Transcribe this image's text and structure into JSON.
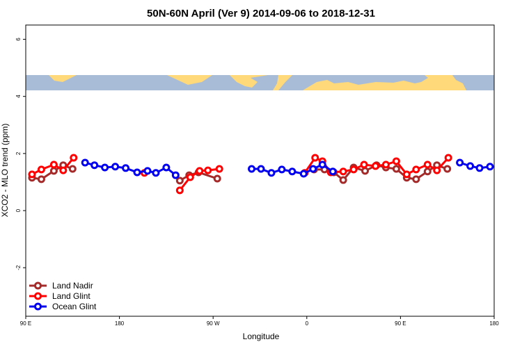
{
  "chart_data": {
    "type": "line",
    "title": "50N-60N April (Ver 9)   2014-09-06 to 2018-12-31",
    "x_label": "Longitude",
    "y_label": "XCO2 - MLO trend (ppm)",
    "xlim": [
      90,
      540
    ],
    "ylim": [
      -3.7,
      6.5
    ],
    "xticks": [
      {
        "value": 90,
        "label": "90 E"
      },
      180,
      {
        "value": 270,
        "label": "90 W"
      },
      {
        "value": 360,
        "label": "0"
      },
      {
        "value": 450,
        "label": "90 E"
      },
      {
        "value": 540,
        "label": "180"
      }
    ],
    "yticks": [
      -2,
      0,
      2,
      4,
      6
    ],
    "legend": "bottom-left",
    "series": [
      {
        "name": "Land Nadir",
        "color": "#a52a2a",
        "x": [
          96,
          105,
          117,
          126,
          135,
          null,
          238,
          247,
          256,
          274,
          null,
          367,
          377,
          386,
          395,
          405,
          416,
          427,
          436,
          446,
          456,
          465,
          476,
          485,
          495
        ],
        "values": [
          1.15,
          1.1,
          1.39,
          1.59,
          1.46,
          null,
          1.05,
          1.24,
          1.34,
          1.12,
          null,
          1.44,
          1.44,
          1.34,
          1.07,
          1.51,
          1.39,
          1.59,
          1.51,
          1.46,
          1.15,
          1.1,
          1.37,
          1.59,
          1.46
        ]
      },
      {
        "name": "Land Glint",
        "color": "#ff0000",
        "x": [
          96,
          105,
          117,
          126,
          136,
          null,
          204,
          null,
          238,
          248,
          257,
          265,
          276,
          null,
          358,
          368,
          375,
          383,
          395,
          405,
          415,
          426,
          436,
          446,
          456,
          465,
          476,
          485,
          496
        ],
        "values": [
          1.27,
          1.44,
          1.61,
          1.41,
          1.85,
          null,
          1.32,
          null,
          0.71,
          1.17,
          1.39,
          1.41,
          1.46,
          null,
          1.32,
          1.85,
          1.73,
          1.34,
          1.37,
          1.44,
          1.61,
          1.56,
          1.61,
          1.73,
          1.27,
          1.44,
          1.61,
          1.41,
          1.85
        ]
      },
      {
        "name": "Ocean Glint",
        "color": "#0000ee",
        "x": [
          147,
          156,
          166,
          176,
          186,
          197,
          207,
          215,
          225,
          234,
          null,
          307,
          316,
          326,
          336,
          346,
          357,
          366,
          375,
          385,
          null,
          507,
          517,
          526,
          536
        ],
        "values": [
          1.68,
          1.59,
          1.51,
          1.54,
          1.49,
          1.34,
          1.39,
          1.32,
          1.51,
          1.24,
          null,
          1.46,
          1.46,
          1.32,
          1.44,
          1.37,
          1.29,
          1.46,
          1.61,
          1.37,
          null,
          1.68,
          1.56,
          1.49,
          1.54
        ]
      }
    ]
  }
}
